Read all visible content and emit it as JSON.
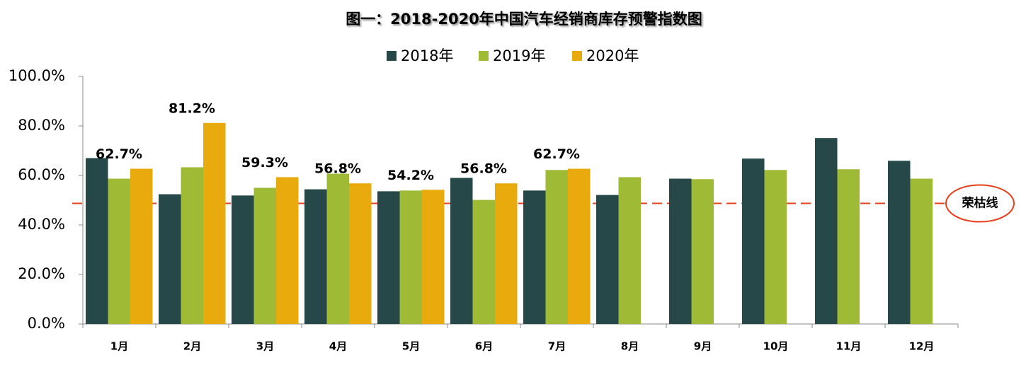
{
  "chart_data": {
    "type": "bar",
    "title": "图一：2018-2020年中国汽车经销商库存预警指数图",
    "categories": [
      "1月",
      "2月",
      "3月",
      "4月",
      "5月",
      "6月",
      "7月",
      "8月",
      "9月",
      "10月",
      "11月",
      "12月"
    ],
    "series": [
      {
        "name": "2018年",
        "color": "#264848",
        "values": [
          67.0,
          52.4,
          51.9,
          54.4,
          53.6,
          59.0,
          53.9,
          52.1,
          58.7,
          66.8,
          75.1,
          65.9
        ]
      },
      {
        "name": "2019年",
        "color": "#9fba35",
        "values": [
          58.7,
          63.3,
          55.0,
          60.7,
          53.9,
          50.1,
          62.2,
          59.3,
          58.5,
          62.2,
          62.5,
          58.7
        ]
      },
      {
        "name": "2020年",
        "color": "#e8aa0c",
        "values": [
          62.7,
          81.2,
          59.3,
          56.8,
          54.2,
          56.8,
          62.7,
          null,
          null,
          null,
          null,
          null
        ],
        "value_labels": [
          "62.7%",
          "81.2%",
          "59.3%",
          "56.8%",
          "54.2%",
          "56.8%",
          "62.7%",
          null,
          null,
          null,
          null,
          null
        ]
      }
    ],
    "ylim": [
      0,
      100
    ],
    "yticks": [
      {
        "value": 0,
        "label": "0.0%"
      },
      {
        "value": 20,
        "label": "20.0%"
      },
      {
        "value": 40,
        "label": "40.0%"
      },
      {
        "value": 60,
        "label": "60.0%"
      },
      {
        "value": 80,
        "label": "80.0%"
      },
      {
        "value": 100,
        "label": "100.0%"
      }
    ],
    "threshold": 48.7,
    "threshold_label": "荣枯线",
    "threshold_color": "#e8401c",
    "legend": "top"
  }
}
